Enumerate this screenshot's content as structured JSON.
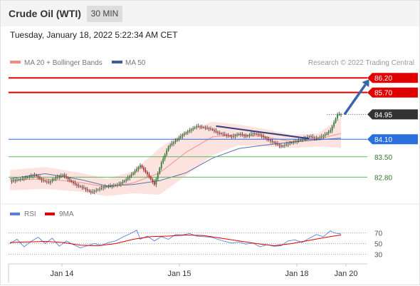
{
  "header": {
    "title": "Crude Oil (WTI)",
    "timeframe": "30 MIN"
  },
  "datetime": "Tuesday, January 18, 2022 5:22:34 AM CET",
  "legend": {
    "ma20": "MA 20 + Bollinger Bands",
    "ma50": "MA 50",
    "ma20_color": "#f28b82",
    "ma50_color": "#3f5d9a"
  },
  "credit": "Research © 2022 Trading Central",
  "colors": {
    "resistance": "#e00000",
    "pivot": "#2a6fdb",
    "support": "#5cb85c",
    "last": "#333333",
    "candle_up": "#2e8b2e",
    "candle_down": "#d92020",
    "band": "#fbdad6",
    "arrow": "#3a64a8",
    "rsi": "#5b7fdb",
    "rsi_ma": "#e00000"
  },
  "chart_data": [
    {
      "type": "candlestick",
      "title": "Crude Oil (WTI)",
      "timeframe": "30 MIN",
      "x_labels": [
        "Jan 14",
        "Jan 15",
        "Jan 18",
        "Jan 20"
      ],
      "ylim": [
        82.2,
        86.4
      ],
      "levels": [
        {
          "value": 86.2,
          "label": "86.20",
          "kind": "resistance",
          "color": "#e00000"
        },
        {
          "value": 85.7,
          "label": "85.70",
          "kind": "resistance",
          "color": "#e00000"
        },
        {
          "value": 84.95,
          "label": "84.95",
          "kind": "last",
          "color": "#333333"
        },
        {
          "value": 84.1,
          "label": "84.10",
          "kind": "pivot",
          "color": "#2a6fdb"
        },
        {
          "value": 83.5,
          "label": "83.50",
          "kind": "support",
          "color": "#5cb85c"
        },
        {
          "value": 82.8,
          "label": "82.80",
          "kind": "support",
          "color": "#5cb85c"
        }
      ],
      "price_path": [
        [
          0,
          82.65
        ],
        [
          5,
          82.72
        ],
        [
          10,
          82.8
        ],
        [
          14,
          82.88
        ],
        [
          18,
          82.7
        ],
        [
          22,
          82.62
        ],
        [
          26,
          82.78
        ],
        [
          30,
          82.88
        ],
        [
          34,
          82.68
        ],
        [
          38,
          82.52
        ],
        [
          42,
          82.42
        ],
        [
          46,
          82.28
        ],
        [
          50,
          82.38
        ],
        [
          54,
          82.48
        ],
        [
          58,
          82.5
        ],
        [
          62,
          82.56
        ],
        [
          66,
          82.72
        ],
        [
          70,
          82.95
        ],
        [
          74,
          83.2
        ],
        [
          78,
          82.9
        ],
        [
          82,
          82.55
        ],
        [
          86,
          83.3
        ],
        [
          90,
          83.85
        ],
        [
          94,
          84.05
        ],
        [
          98,
          84.25
        ],
        [
          102,
          84.4
        ],
        [
          106,
          84.55
        ],
        [
          110,
          84.5
        ],
        [
          114,
          84.45
        ],
        [
          118,
          84.32
        ],
        [
          122,
          84.25
        ],
        [
          126,
          84.18
        ],
        [
          130,
          84.28
        ],
        [
          134,
          84.2
        ],
        [
          138,
          84.3
        ],
        [
          142,
          84.25
        ],
        [
          146,
          84.1
        ],
        [
          150,
          83.98
        ],
        [
          154,
          83.85
        ],
        [
          158,
          83.95
        ],
        [
          162,
          84.02
        ],
        [
          166,
          84.1
        ],
        [
          170,
          84.2
        ],
        [
          174,
          84.12
        ],
        [
          178,
          84.22
        ],
        [
          182,
          84.4
        ],
        [
          186,
          84.95
        ],
        [
          188,
          84.95
        ]
      ],
      "ma20": [
        [
          0,
          82.7
        ],
        [
          20,
          82.75
        ],
        [
          40,
          82.62
        ],
        [
          55,
          82.46
        ],
        [
          70,
          82.6
        ],
        [
          85,
          82.95
        ],
        [
          100,
          83.65
        ],
        [
          115,
          84.18
        ],
        [
          130,
          84.26
        ],
        [
          145,
          84.18
        ],
        [
          160,
          84.02
        ],
        [
          175,
          84.1
        ],
        [
          188,
          84.3
        ]
      ],
      "ma50": [
        [
          0,
          82.75
        ],
        [
          20,
          82.92
        ],
        [
          40,
          82.72
        ],
        [
          55,
          82.5
        ],
        [
          70,
          82.55
        ],
        [
          85,
          82.68
        ],
        [
          100,
          82.95
        ],
        [
          115,
          83.45
        ],
        [
          130,
          83.78
        ],
        [
          145,
          83.9
        ],
        [
          160,
          84.0
        ],
        [
          175,
          84.08
        ],
        [
          188,
          84.14
        ]
      ],
      "bollinger_upper": [
        [
          0,
          83.05
        ],
        [
          20,
          83.15
        ],
        [
          40,
          82.95
        ],
        [
          55,
          82.75
        ],
        [
          70,
          83.0
        ],
        [
          85,
          83.8
        ],
        [
          100,
          84.4
        ],
        [
          115,
          84.7
        ],
        [
          130,
          84.6
        ],
        [
          145,
          84.45
        ],
        [
          160,
          84.25
        ],
        [
          175,
          84.3
        ],
        [
          188,
          84.85
        ]
      ],
      "bollinger_lower": [
        [
          0,
          82.35
        ],
        [
          20,
          82.4
        ],
        [
          40,
          82.3
        ],
        [
          55,
          82.15
        ],
        [
          70,
          82.25
        ],
        [
          85,
          82.2
        ],
        [
          100,
          82.85
        ],
        [
          115,
          83.55
        ],
        [
          130,
          83.9
        ],
        [
          145,
          83.85
        ],
        [
          160,
          83.8
        ],
        [
          175,
          83.85
        ],
        [
          188,
          83.8
        ]
      ],
      "trendline": [
        [
          117,
          84.55
        ],
        [
          170,
          84.12
        ]
      ],
      "forecast_arrow": [
        [
          190,
          84.95
        ],
        [
          204,
          86.15
        ]
      ]
    },
    {
      "type": "line",
      "title": "",
      "legend": [
        "RSI",
        "9MA"
      ],
      "yticks": [
        30,
        50,
        70
      ],
      "ylim": [
        20,
        80
      ],
      "series": [
        {
          "name": "RSI",
          "color": "#5b7fdb",
          "values": [
            [
              0,
              50
            ],
            [
              4,
              58
            ],
            [
              8,
              44
            ],
            [
              12,
              54
            ],
            [
              16,
              62
            ],
            [
              20,
              50
            ],
            [
              24,
              60
            ],
            [
              28,
              45
            ],
            [
              32,
              55
            ],
            [
              36,
              48
            ],
            [
              40,
              42
            ],
            [
              44,
              46
            ],
            [
              48,
              50
            ],
            [
              52,
              47
            ],
            [
              56,
              52
            ],
            [
              60,
              55
            ],
            [
              64,
              62
            ],
            [
              68,
              68
            ],
            [
              72,
              75
            ],
            [
              74,
              58
            ],
            [
              78,
              64
            ],
            [
              82,
              55
            ],
            [
              86,
              63
            ],
            [
              90,
              58
            ],
            [
              94,
              67
            ],
            [
              98,
              66
            ],
            [
              102,
              69
            ],
            [
              106,
              64
            ],
            [
              110,
              63
            ],
            [
              114,
              62
            ],
            [
              118,
              58
            ],
            [
              122,
              54
            ],
            [
              126,
              51
            ],
            [
              130,
              53
            ],
            [
              134,
              49
            ],
            [
              138,
              51
            ],
            [
              142,
              44
            ],
            [
              146,
              48
            ],
            [
              150,
              45
            ],
            [
              154,
              46
            ],
            [
              158,
              55
            ],
            [
              162,
              57
            ],
            [
              166,
              52
            ],
            [
              170,
              60
            ],
            [
              174,
              67
            ],
            [
              178,
              63
            ],
            [
              182,
              74
            ],
            [
              184,
              70
            ],
            [
              188,
              68
            ]
          ]
        },
        {
          "name": "9MA",
          "color": "#e00000",
          "values": [
            [
              0,
              52
            ],
            [
              10,
              53
            ],
            [
              20,
              54
            ],
            [
              30,
              52
            ],
            [
              40,
              47
            ],
            [
              50,
              46
            ],
            [
              60,
              50
            ],
            [
              70,
              58
            ],
            [
              80,
              63
            ],
            [
              90,
              64
            ],
            [
              100,
              66
            ],
            [
              110,
              65
            ],
            [
              120,
              60
            ],
            [
              130,
              55
            ],
            [
              140,
              50
            ],
            [
              150,
              46
            ],
            [
              160,
              50
            ],
            [
              170,
              56
            ],
            [
              180,
              62
            ],
            [
              188,
              66
            ]
          ]
        }
      ]
    }
  ]
}
